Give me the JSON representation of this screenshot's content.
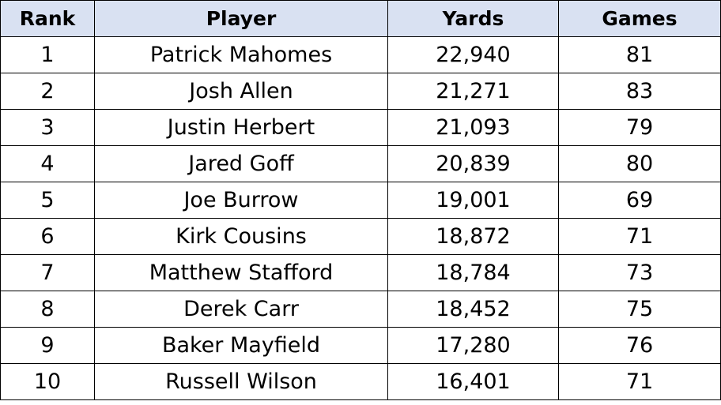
{
  "table": {
    "headers": [
      "Rank",
      "Player",
      "Yards",
      "Games"
    ],
    "rows": [
      [
        "1",
        "Patrick Mahomes",
        "22,940",
        "81"
      ],
      [
        "2",
        "Josh Allen",
        "21,271",
        "83"
      ],
      [
        "3",
        "Justin Herbert",
        "21,093",
        "79"
      ],
      [
        "4",
        "Jared Goff",
        "20,839",
        "80"
      ],
      [
        "5",
        "Joe Burrow",
        "19,001",
        "69"
      ],
      [
        "6",
        "Kirk Cousins",
        "18,872",
        "71"
      ],
      [
        "7",
        "Matthew Stafford",
        "18,784",
        "73"
      ],
      [
        "8",
        "Derek Carr",
        "18,452",
        "75"
      ],
      [
        "9",
        "Baker Mayfield",
        "17,280",
        "76"
      ],
      [
        "10",
        "Russell Wilson",
        "16,401",
        "71"
      ]
    ],
    "header_bg": "#d9e1f2",
    "border_color": "#000000"
  }
}
